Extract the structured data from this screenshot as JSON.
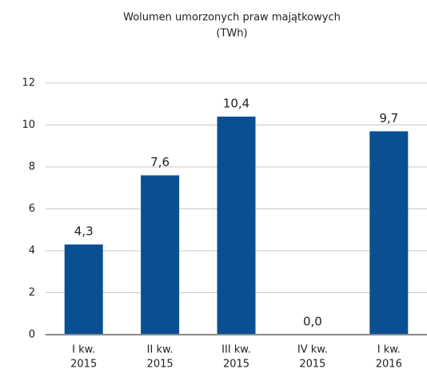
{
  "chart_data": {
    "type": "bar",
    "title": [
      "Wolumen umorzonych praw majątkowych",
      "(TWh)"
    ],
    "categories": [
      [
        "I kw.",
        "2015"
      ],
      [
        "II kw.",
        "2015"
      ],
      [
        "III kw.",
        "2015"
      ],
      [
        "IV kw.",
        "2015"
      ],
      [
        "I kw.",
        "2016"
      ]
    ],
    "values": [
      4.3,
      7.6,
      10.4,
      0,
      9.7
    ],
    "value_labels": [
      "4,3",
      "7,6",
      "10,4",
      "0,0",
      "9,7"
    ],
    "color": "#0b4f93",
    "ylim": [
      0,
      12
    ],
    "yticks": [
      0,
      2,
      4,
      6,
      8,
      10,
      12
    ],
    "grid": true
  }
}
